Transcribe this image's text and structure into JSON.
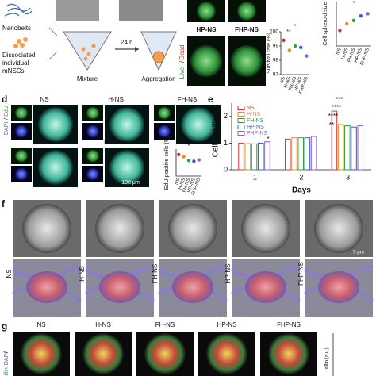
{
  "panel_letters": [
    "d",
    "e",
    "f",
    "g"
  ],
  "panel_a": {
    "material": "Nanobelts",
    "cells": [
      "Dissociated",
      "individual",
      "mNSCs"
    ],
    "time": "24 h",
    "steps": [
      "Mixture",
      "Aggregation"
    ]
  },
  "panel_b": {
    "stains": [
      "Live",
      "/",
      "Dead"
    ],
    "samples": [
      "HP-NS",
      "FHP-NS"
    ]
  },
  "panel_d": {
    "stains": [
      "DAPI",
      "/",
      "EdU"
    ],
    "samples": [
      "NS",
      "H-NS",
      "FH-NS",
      "HP-NS",
      "FHP-NS"
    ],
    "scale_bar": "100 μm"
  },
  "panel_f": {
    "samples": [
      "NS",
      "H-NS",
      "FH-NS",
      "HP-NS",
      "FHP-NS"
    ],
    "scale_bar": "5 μm"
  },
  "panel_g": {
    "samples": [
      "NS",
      "H-NS",
      "FH-NS",
      "HP-NS",
      "FHP-NS"
    ],
    "stains": [
      "xillin",
      "/",
      "DAPI"
    ],
    "chart_label": "xillin (a.u.)"
  },
  "chart_data": [
    {
      "type": "dot",
      "ylabel": "Survival rate (%)",
      "categories": [
        "NS",
        "H-NS",
        "FH-NS",
        "HP-NS",
        "FHP-NS"
      ],
      "values": [
        99.4,
        98.7,
        99.0,
        98.9,
        98.3
      ],
      "colors": [
        "#d9342b",
        "#f08c1c",
        "#2e9e3e",
        "#2f5fbf",
        "#9b59d0"
      ],
      "ylim": [
        97,
        100
      ],
      "yticks": [
        97,
        98,
        99,
        100
      ],
      "annotations": [
        "**",
        "*"
      ]
    },
    {
      "type": "dot",
      "ylabel": "Cell spheroid size",
      "categories": [
        "NS",
        "H-NS",
        "FH-NS",
        "HP-NS",
        "FHP-NS"
      ],
      "values": [
        170,
        200,
        215,
        235,
        245
      ],
      "colors": [
        "#d9342b",
        "#f08c1c",
        "#2e9e3e",
        "#2f5fbf",
        "#9b59d0"
      ],
      "ylim": [
        100,
        300
      ],
      "annotations": [
        "*"
      ]
    },
    {
      "type": "dot",
      "ylabel": "EdU-positive cells (%)",
      "categories": [
        "NS",
        "H-NS",
        "FH-NS",
        "HP-NS",
        "FHP-NS"
      ],
      "values": [
        80,
        72,
        58,
        55,
        60
      ],
      "colors": [
        "#d9342b",
        "#f08c1c",
        "#2e9e3e",
        "#2f5fbf",
        "#9b59d0"
      ],
      "ylim": [
        0,
        100
      ],
      "annotations": [
        "*"
      ]
    },
    {
      "type": "bar",
      "ylabel": "Cell viability",
      "xlabel": "Days",
      "categories": [
        "1",
        "2",
        "3"
      ],
      "series": [
        {
          "name": "NS",
          "color": "#d9342b",
          "values": [
            1.0,
            1.15,
            2.2
          ]
        },
        {
          "name": "H-NS",
          "color": "#f08c1c",
          "values": [
            0.98,
            1.2,
            1.7
          ]
        },
        {
          "name": "FH-NS",
          "color": "#2e9e3e",
          "values": [
            0.97,
            1.2,
            1.65
          ]
        },
        {
          "name": "HP-NS",
          "color": "#2f5fbf",
          "values": [
            1.0,
            1.2,
            1.6
          ]
        },
        {
          "name": "FHP-NS",
          "color": "#9b59d0",
          "values": [
            1.05,
            1.25,
            1.65
          ]
        }
      ],
      "ylim": [
        0,
        2.5
      ],
      "yticks": [
        0,
        1,
        2
      ],
      "annotations": [
        "*",
        "**",
        "****",
        "****",
        "***"
      ]
    }
  ]
}
